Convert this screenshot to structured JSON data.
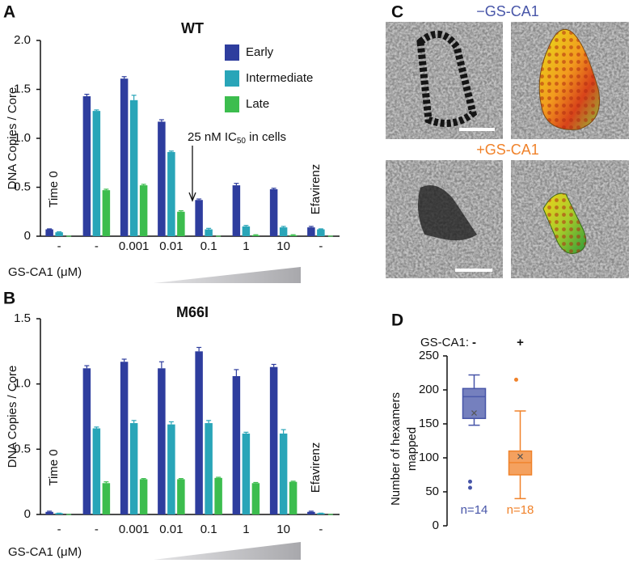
{
  "panels": [
    "A",
    "B",
    "C",
    "D"
  ],
  "panel_c": {
    "labels": [
      "−GS-CA1",
      "+GS-CA1"
    ]
  },
  "chart_data": [
    {
      "type": "bar",
      "title": "WT",
      "ylabel": "DNA Copies / Core",
      "xlabel": "GS-CA1 (μM)",
      "categories": [
        "-",
        "-",
        "0.001",
        "0.01",
        "0.1",
        "1",
        "10",
        "-"
      ],
      "annotations": [
        "Time 0",
        "Efavirenz"
      ],
      "ic50_note": [
        "25 nM IC",
        "50",
        " in cells"
      ],
      "legend": "top-right",
      "grid": false,
      "ylim": [
        0,
        2.0
      ],
      "yticks": [
        0,
        0.5,
        {
          "value": 1.0,
          "label": "1.0"
        },
        1.5,
        {
          "value": 2.0,
          "label": "2.0"
        }
      ],
      "series": [
        {
          "name": "Early",
          "color": "#2e3d9e",
          "values": [
            0.07,
            1.43,
            1.61,
            1.17,
            0.37,
            0.52,
            0.48,
            0.09
          ],
          "errors": [
            0.005,
            0.02,
            0.02,
            0.02,
            0.01,
            0.02,
            0.01,
            0.01
          ]
        },
        {
          "name": "Intermediate",
          "color": "#29a5b8",
          "values": [
            0.04,
            1.28,
            1.39,
            0.86,
            0.07,
            0.1,
            0.09,
            0.07
          ],
          "errors": [
            0.005,
            0.01,
            0.05,
            0.01,
            0.01,
            0.01,
            0.01,
            0.005
          ]
        },
        {
          "name": "Late",
          "color": "#3cbd4e",
          "values": [
            0,
            0.47,
            0.52,
            0.25,
            0,
            0.01,
            0.01,
            0
          ],
          "errors": [
            0,
            0.01,
            0.01,
            0.01,
            0,
            0.005,
            0.005,
            0
          ]
        }
      ]
    },
    {
      "type": "bar",
      "title": "M66I",
      "ylabel": "DNA Copies / Core",
      "xlabel": "GS-CA1 (μM)",
      "categories": [
        "-",
        "-",
        "0.001",
        "0.01",
        "0.1",
        "1",
        "10",
        "-"
      ],
      "annotations": [
        "Time 0",
        "Efavirenz"
      ],
      "grid": false,
      "ylim": [
        0,
        1.5
      ],
      "yticks": [
        0,
        0.5,
        {
          "value": 1.0,
          "label": "1.0"
        },
        1.5
      ],
      "series": [
        {
          "name": "Early",
          "color": "#2e3d9e",
          "values": [
            0.02,
            1.12,
            1.17,
            1.12,
            1.25,
            1.06,
            1.13,
            0.02
          ],
          "errors": [
            0.005,
            0.02,
            0.02,
            0.05,
            0.03,
            0.05,
            0.02,
            0.005
          ]
        },
        {
          "name": "Intermediate",
          "color": "#29a5b8",
          "values": [
            0.01,
            0.66,
            0.7,
            0.69,
            0.7,
            0.62,
            0.62,
            0.01
          ],
          "errors": [
            0,
            0.01,
            0.02,
            0.02,
            0.02,
            0.01,
            0.03,
            0
          ]
        },
        {
          "name": "Late",
          "color": "#3cbd4e",
          "values": [
            0,
            0.24,
            0.27,
            0.27,
            0.28,
            0.24,
            0.25,
            0
          ],
          "errors": [
            0,
            0.01,
            0.005,
            0.005,
            0.005,
            0.005,
            0.005,
            0
          ]
        }
      ]
    },
    {
      "type": "box",
      "ylabel": [
        "Number of hexamers",
        "mapped"
      ],
      "group_label": "GS-CA1:",
      "categories": [
        "-",
        "+"
      ],
      "ylim": [
        0,
        250
      ],
      "yticks": [
        0,
        50,
        100,
        150,
        200,
        250
      ],
      "boxes": [
        {
          "n_label": "n=14",
          "color": "#4755a8",
          "whislo": 148,
          "q1": 158,
          "med": 190,
          "q3": 202,
          "whishi": 222,
          "mean": 166,
          "fliers": [
            65,
            56
          ]
        },
        {
          "n_label": "n=18",
          "color": "#f0822a",
          "whislo": 40,
          "q1": 75,
          "med": 93,
          "q3": 110,
          "whishi": 169,
          "mean": 102,
          "fliers": [
            215
          ]
        }
      ]
    }
  ]
}
